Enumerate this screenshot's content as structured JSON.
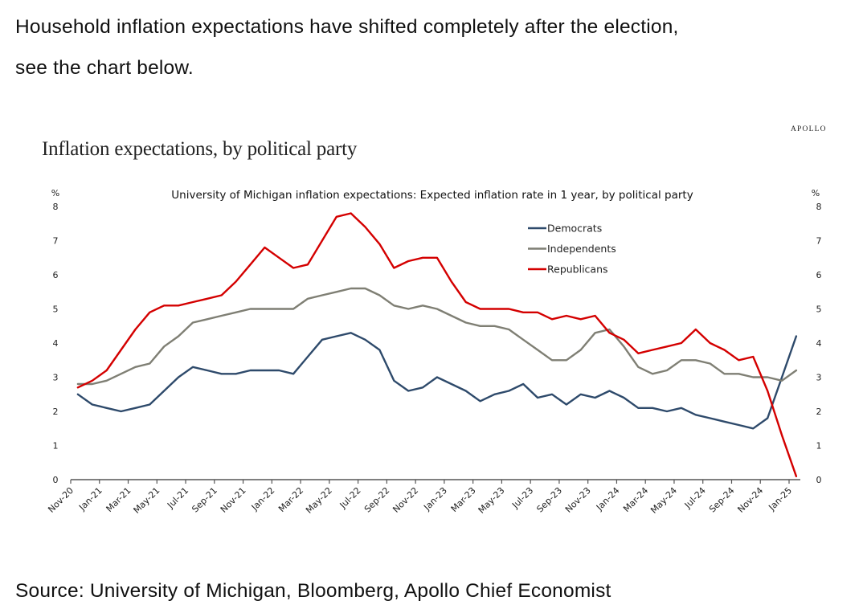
{
  "intro_text_line1": "Household inflation expectations have shifted completely after the election,",
  "intro_text_line2": "see the chart below.",
  "brand": "APOLLO",
  "source": "Source: University of Michigan, Bloomberg, Apollo Chief Economist",
  "chart_data": {
    "type": "line",
    "title": "Inflation expectations, by political party",
    "subtitle": "University of Michigan inflation expectations: Expected inflation rate in 1 year, by political party",
    "ylabel_left": "%",
    "ylabel_right": "%",
    "ylim": [
      0,
      8
    ],
    "yticks": [
      0,
      1,
      2,
      3,
      4,
      5,
      6,
      7,
      8
    ],
    "grid": false,
    "legend_position": "top-right",
    "x_tick_labels": [
      "Nov-20",
      "Jan-21",
      "Mar-21",
      "May-21",
      "Jul-21",
      "Sep-21",
      "Nov-21",
      "Jan-22",
      "Mar-22",
      "May-22",
      "Jul-22",
      "Sep-22",
      "Nov-22",
      "Jan-23",
      "Mar-23",
      "May-23",
      "Jul-23",
      "Sep-23",
      "Nov-23",
      "Jan-24",
      "Mar-24",
      "May-24",
      "Jul-24",
      "Sep-24",
      "Nov-24",
      "Jan-25"
    ],
    "x": [
      "Nov-20",
      "Dec-20",
      "Jan-21",
      "Feb-21",
      "Mar-21",
      "Apr-21",
      "May-21",
      "Jun-21",
      "Jul-21",
      "Aug-21",
      "Sep-21",
      "Oct-21",
      "Nov-21",
      "Dec-21",
      "Jan-22",
      "Feb-22",
      "Mar-22",
      "Apr-22",
      "May-22",
      "Jun-22",
      "Jul-22",
      "Aug-22",
      "Sep-22",
      "Oct-22",
      "Nov-22",
      "Dec-22",
      "Jan-23",
      "Feb-23",
      "Mar-23",
      "Apr-23",
      "May-23",
      "Jun-23",
      "Jul-23",
      "Aug-23",
      "Sep-23",
      "Oct-23",
      "Nov-23",
      "Dec-23",
      "Jan-24",
      "Feb-24",
      "Mar-24",
      "Apr-24",
      "May-24",
      "Jun-24",
      "Jul-24",
      "Aug-24",
      "Sep-24",
      "Oct-24",
      "Nov-24",
      "Dec-24",
      "Jan-25"
    ],
    "series": [
      {
        "name": "Democrats",
        "color": "#2e4a6b",
        "values": [
          2.5,
          2.2,
          2.1,
          2.0,
          2.1,
          2.2,
          2.6,
          3.0,
          3.3,
          3.2,
          3.1,
          3.1,
          3.2,
          3.2,
          3.2,
          3.1,
          3.6,
          4.1,
          4.2,
          4.3,
          4.1,
          3.8,
          2.9,
          2.6,
          2.7,
          3.0,
          2.8,
          2.6,
          2.3,
          2.5,
          2.6,
          2.8,
          2.4,
          2.5,
          2.2,
          2.5,
          2.4,
          2.6,
          2.4,
          2.1,
          2.1,
          2.0,
          2.1,
          1.9,
          1.8,
          1.7,
          1.6,
          1.5,
          1.8,
          3.0,
          4.2
        ]
      },
      {
        "name": "Independents",
        "color": "#7f7f74",
        "values": [
          2.8,
          2.8,
          2.9,
          3.1,
          3.3,
          3.4,
          3.9,
          4.2,
          4.6,
          4.7,
          4.8,
          4.9,
          5.0,
          5.0,
          5.0,
          5.0,
          5.3,
          5.4,
          5.5,
          5.6,
          5.6,
          5.4,
          5.1,
          5.0,
          5.1,
          5.0,
          4.8,
          4.6,
          4.5,
          4.5,
          4.4,
          4.1,
          3.8,
          3.5,
          3.5,
          3.8,
          4.3,
          4.4,
          3.9,
          3.3,
          3.1,
          3.2,
          3.5,
          3.5,
          3.4,
          3.1,
          3.1,
          3.0,
          3.0,
          2.9,
          3.2
        ]
      },
      {
        "name": "Republicans",
        "color": "#d40000",
        "values": [
          2.7,
          2.9,
          3.2,
          3.8,
          4.4,
          4.9,
          5.1,
          5.1,
          5.2,
          5.3,
          5.4,
          5.8,
          6.3,
          6.8,
          6.5,
          6.2,
          6.3,
          7.0,
          7.7,
          7.8,
          7.4,
          6.9,
          6.2,
          6.4,
          6.5,
          6.5,
          5.8,
          5.2,
          5.0,
          5.0,
          5.0,
          4.9,
          4.9,
          4.7,
          4.8,
          4.7,
          4.8,
          4.3,
          4.1,
          3.7,
          3.8,
          3.9,
          4.0,
          4.4,
          4.0,
          3.8,
          3.5,
          3.6,
          2.6,
          1.3,
          0.1
        ]
      }
    ]
  }
}
